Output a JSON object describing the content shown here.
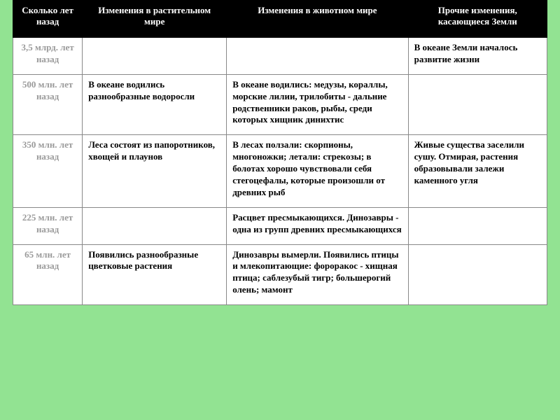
{
  "background_color": "#92e392",
  "table": {
    "header_bg": "#000000",
    "header_fg": "#ffffff",
    "cell_border": "#888888",
    "time_color": "#9a9a9a",
    "font_family": "Times New Roman",
    "font_size_pt": 10,
    "columns": [
      {
        "label": "Сколько лет назад",
        "width_pct": 13
      },
      {
        "label": "Изменения в растительном мире",
        "width_pct": 27
      },
      {
        "label": "Изменения в животном мире",
        "width_pct": 34
      },
      {
        "label": "Прочие изменения, касающиеся Земли",
        "width_pct": 26
      }
    ],
    "rows": [
      {
        "time": "3,5 млрд. лет назад",
        "plants": "",
        "animals": "",
        "other": "В океане Земли началось развитие жизни"
      },
      {
        "time": "500 млн. лет назад",
        "plants": "В   океане   водились разнообразные водоросли",
        "animals": "В океане водились: медузы, кораллы, морские лилии, трилобиты - дальние родственники раков, рыбы, среди которых хищник динихтис",
        "other": ""
      },
      {
        "time": "350 млн. лет назад",
        "plants": "Леса состоят  из папоротников, хвощей  и плаунов",
        "animals": "В лесах ползали: скорпионы, многоножки; летали: стрекозы; в болотах хорошо чувствовали   себя стегоцефалы, которые произошли от древних рыб",
        "other": "Живые   существа заселили сушу. Отмирая,   растения образовывали залежи   каменного угля"
      },
      {
        "time": "225 млн. лет назад",
        "plants": "",
        "animals": "Расцвет    пресмыкающихся. Динозавры - одна из групп древних пресмыкающихся",
        "other": ""
      },
      {
        "time": "65 млн. лет назад",
        "plants": "Появились разнообразные цветковые растения",
        "animals": "Динозавры вымерли. Появились  птицы  и млекопитающие:   фороракос -   хищная птица; саблезубый    тигр; большерогий олень; мамонт",
        "other": ""
      }
    ]
  }
}
